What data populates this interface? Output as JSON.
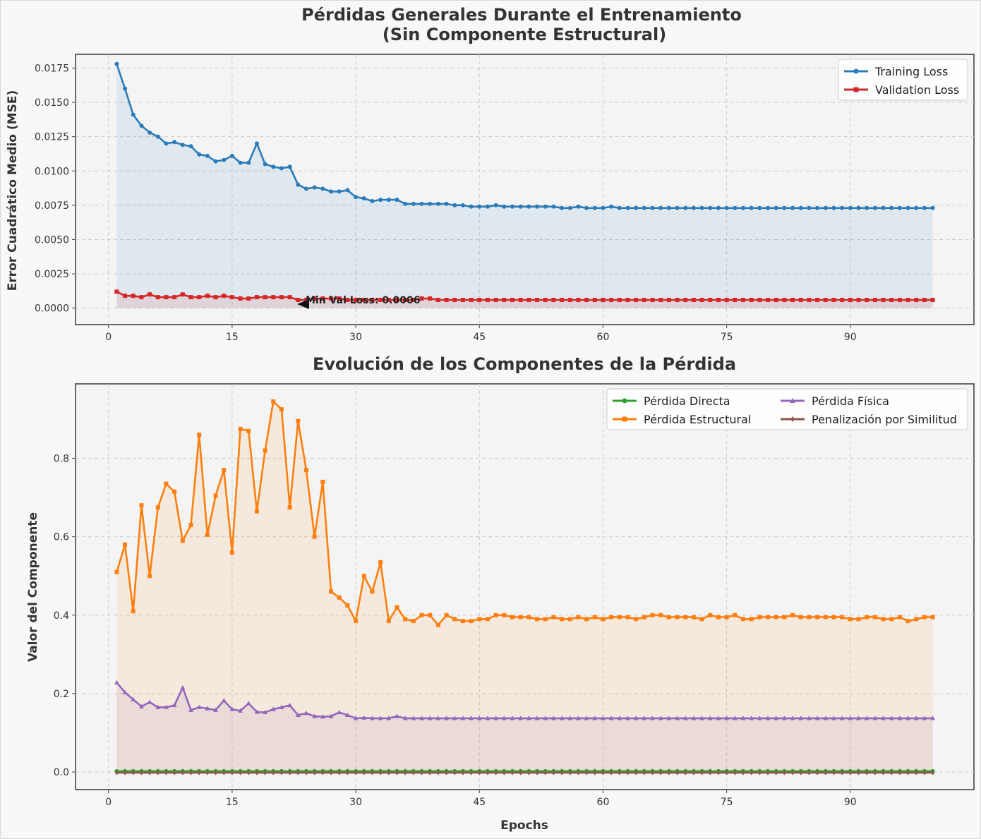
{
  "chart_data": [
    {
      "type": "line",
      "title_line1": "Pérdidas Generales Durante el Entrenamiento",
      "title_line2": "(Sin Componente Estructural)",
      "xlabel": "",
      "ylabel": "Error Cuadrático Medio (MSE)",
      "xlim": [
        -4,
        105
      ],
      "ylim": [
        -0.0012,
        0.0185
      ],
      "xticks": [
        0,
        15,
        30,
        45,
        60,
        75,
        90
      ],
      "yticks": [
        0.0,
        0.0025,
        0.005,
        0.0075,
        0.01,
        0.0125,
        0.015,
        0.0175
      ],
      "ytick_labels": [
        "0.0000",
        "0.0025",
        "0.0050",
        "0.0075",
        "0.0100",
        "0.0125",
        "0.0150",
        "0.0175"
      ],
      "grid": true,
      "legend_position": "top-right",
      "annotation": {
        "text": "Min Val Loss: 0.0006",
        "x": 23,
        "y": 0.0006
      },
      "series": [
        {
          "name": "Training Loss",
          "color": "#2b7bba",
          "marker": "circle",
          "values": [
            0.0178,
            0.016,
            0.0141,
            0.0133,
            0.0128,
            0.0125,
            0.012,
            0.0121,
            0.0119,
            0.0118,
            0.0112,
            0.0111,
            0.0107,
            0.0108,
            0.0111,
            0.0106,
            0.0106,
            0.012,
            0.0105,
            0.0103,
            0.0102,
            0.0103,
            0.009,
            0.0087,
            0.0088,
            0.0087,
            0.0085,
            0.0085,
            0.0086,
            0.0081,
            0.008,
            0.0078,
            0.0079,
            0.0079,
            0.0079,
            0.0076,
            0.0076,
            0.0076,
            0.0076,
            0.0076,
            0.0076,
            0.0075,
            0.0075,
            0.0074,
            0.0074,
            0.0074,
            0.0075,
            0.0074,
            0.0074,
            0.0074,
            0.0074,
            0.0074,
            0.0074,
            0.0074,
            0.0073,
            0.0073,
            0.0074,
            0.0073,
            0.0073,
            0.0073,
            0.0074,
            0.0073,
            0.0073,
            0.0073,
            0.0073,
            0.0073,
            0.0073,
            0.0073,
            0.0073,
            0.0073,
            0.0073,
            0.0073,
            0.0073,
            0.0073,
            0.0073,
            0.0073,
            0.0073,
            0.0073,
            0.0073,
            0.0073,
            0.0073,
            0.0073,
            0.0073,
            0.0073,
            0.0073,
            0.0073,
            0.0073,
            0.0073,
            0.0073,
            0.0073,
            0.0073,
            0.0073,
            0.0073,
            0.0073,
            0.0073,
            0.0073,
            0.0073,
            0.0073,
            0.0073,
            0.0073
          ]
        },
        {
          "name": "Validation Loss",
          "color": "#d62728",
          "marker": "square",
          "values": [
            0.0012,
            0.0009,
            0.0009,
            0.0008,
            0.001,
            0.0008,
            0.0008,
            0.0008,
            0.001,
            0.0008,
            0.0008,
            0.0009,
            0.0008,
            0.0009,
            0.0008,
            0.0007,
            0.0007,
            0.0008,
            0.0008,
            0.0008,
            0.0008,
            0.0008,
            0.0006,
            0.0006,
            0.0007,
            0.0007,
            0.0007,
            0.0007,
            0.0006,
            0.0006,
            0.0006,
            0.0006,
            0.0006,
            0.0006,
            0.0006,
            0.0006,
            0.0006,
            0.0007,
            0.0007,
            0.0006,
            0.0006,
            0.0006,
            0.0006,
            0.0006,
            0.0006,
            0.0006,
            0.0006,
            0.0006,
            0.0006,
            0.0006,
            0.0006,
            0.0006,
            0.0006,
            0.0006,
            0.0006,
            0.0006,
            0.0006,
            0.0006,
            0.0006,
            0.0006,
            0.0006,
            0.0006,
            0.0006,
            0.0006,
            0.0006,
            0.0006,
            0.0006,
            0.0006,
            0.0006,
            0.0006,
            0.0006,
            0.0006,
            0.0006,
            0.0006,
            0.0006,
            0.0006,
            0.0006,
            0.0006,
            0.0006,
            0.0006,
            0.0006,
            0.0006,
            0.0006,
            0.0006,
            0.0006,
            0.0006,
            0.0006,
            0.0006,
            0.0006,
            0.0006,
            0.0006,
            0.0006,
            0.0006,
            0.0006,
            0.0006,
            0.0006,
            0.0006,
            0.0006,
            0.0006,
            0.0006
          ]
        }
      ]
    },
    {
      "type": "line",
      "title": "Evolución de los Componentes de la Pérdida",
      "xlabel": "Epochs",
      "ylabel": "Valor del Componente",
      "xlim": [
        -4,
        105
      ],
      "ylim": [
        -0.045,
        0.99
      ],
      "xticks": [
        0,
        15,
        30,
        45,
        60,
        75,
        90
      ],
      "yticks": [
        0.0,
        0.2,
        0.4,
        0.6,
        0.8
      ],
      "ytick_labels": [
        "0.0",
        "0.2",
        "0.4",
        "0.6",
        "0.8"
      ],
      "grid": true,
      "legend_position": "top-right",
      "legend_columns": 2,
      "series": [
        {
          "name": "Pérdida Directa",
          "color": "#2ca02c",
          "marker": "circle",
          "fill": false,
          "values": [
            0.002,
            0.002,
            0.002,
            0.002,
            0.002,
            0.002,
            0.002,
            0.002,
            0.002,
            0.002,
            0.002,
            0.002,
            0.002,
            0.002,
            0.002,
            0.002,
            0.002,
            0.002,
            0.002,
            0.002,
            0.002,
            0.002,
            0.002,
            0.002,
            0.002,
            0.002,
            0.002,
            0.002,
            0.002,
            0.002,
            0.002,
            0.002,
            0.002,
            0.002,
            0.002,
            0.002,
            0.002,
            0.002,
            0.002,
            0.002,
            0.002,
            0.002,
            0.002,
            0.002,
            0.002,
            0.002,
            0.002,
            0.002,
            0.002,
            0.002,
            0.002,
            0.002,
            0.002,
            0.002,
            0.002,
            0.002,
            0.002,
            0.002,
            0.002,
            0.002,
            0.002,
            0.002,
            0.002,
            0.002,
            0.002,
            0.002,
            0.002,
            0.002,
            0.002,
            0.002,
            0.002,
            0.002,
            0.002,
            0.002,
            0.002,
            0.002,
            0.002,
            0.002,
            0.002,
            0.002,
            0.002,
            0.002,
            0.002,
            0.002,
            0.002,
            0.002,
            0.002,
            0.002,
            0.002,
            0.002,
            0.002,
            0.002,
            0.002,
            0.002,
            0.002,
            0.002,
            0.002,
            0.002,
            0.002,
            0.002
          ]
        },
        {
          "name": "Pérdida Estructural",
          "color": "#ff7f0e",
          "marker": "square",
          "fill": true,
          "values": [
            0.51,
            0.58,
            0.41,
            0.68,
            0.5,
            0.675,
            0.735,
            0.715,
            0.59,
            0.63,
            0.86,
            0.605,
            0.705,
            0.77,
            0.56,
            0.875,
            0.87,
            0.665,
            0.82,
            0.945,
            0.925,
            0.675,
            0.895,
            0.77,
            0.6,
            0.74,
            0.46,
            0.445,
            0.425,
            0.385,
            0.5,
            0.46,
            0.535,
            0.385,
            0.42,
            0.39,
            0.385,
            0.4,
            0.4,
            0.375,
            0.4,
            0.39,
            0.385,
            0.385,
            0.39,
            0.39,
            0.4,
            0.4,
            0.395,
            0.395,
            0.395,
            0.39,
            0.39,
            0.395,
            0.39,
            0.39,
            0.395,
            0.39,
            0.395,
            0.39,
            0.395,
            0.395,
            0.395,
            0.39,
            0.395,
            0.4,
            0.4,
            0.395,
            0.395,
            0.395,
            0.395,
            0.39,
            0.4,
            0.395,
            0.395,
            0.4,
            0.39,
            0.39,
            0.395,
            0.395,
            0.395,
            0.395,
            0.4,
            0.395,
            0.395,
            0.395,
            0.395,
            0.395,
            0.395,
            0.39,
            0.39,
            0.395,
            0.395,
            0.39,
            0.39,
            0.395,
            0.385,
            0.39,
            0.395,
            0.395
          ]
        },
        {
          "name": "Pérdida Física",
          "color": "#9467bd",
          "marker": "triangle",
          "fill": true,
          "values": [
            0.228,
            0.203,
            0.185,
            0.167,
            0.178,
            0.165,
            0.165,
            0.17,
            0.215,
            0.158,
            0.165,
            0.162,
            0.158,
            0.182,
            0.16,
            0.156,
            0.175,
            0.153,
            0.152,
            0.16,
            0.165,
            0.17,
            0.145,
            0.15,
            0.142,
            0.141,
            0.142,
            0.152,
            0.145,
            0.137,
            0.138,
            0.137,
            0.137,
            0.137,
            0.142,
            0.137,
            0.137,
            0.137,
            0.137,
            0.137,
            0.137,
            0.137,
            0.137,
            0.137,
            0.137,
            0.137,
            0.137,
            0.137,
            0.137,
            0.137,
            0.137,
            0.137,
            0.137,
            0.137,
            0.137,
            0.137,
            0.137,
            0.137,
            0.137,
            0.137,
            0.137,
            0.137,
            0.137,
            0.137,
            0.137,
            0.137,
            0.137,
            0.137,
            0.137,
            0.137,
            0.137,
            0.137,
            0.137,
            0.137,
            0.137,
            0.137,
            0.137,
            0.137,
            0.137,
            0.137,
            0.137,
            0.137,
            0.137,
            0.137,
            0.137,
            0.137,
            0.137,
            0.137,
            0.137,
            0.137,
            0.137,
            0.137,
            0.137,
            0.137,
            0.137,
            0.137,
            0.137,
            0.137,
            0.137,
            0.137
          ]
        },
        {
          "name": "Penalización por Similitud",
          "color": "#8c564b",
          "marker": "diamond",
          "fill": false,
          "values": [
            -0.002,
            -0.002,
            -0.002,
            -0.002,
            -0.002,
            -0.002,
            -0.002,
            -0.002,
            -0.002,
            -0.002,
            -0.002,
            -0.002,
            -0.002,
            -0.002,
            -0.002,
            -0.002,
            -0.002,
            -0.002,
            -0.002,
            -0.002,
            -0.002,
            -0.002,
            -0.002,
            -0.002,
            -0.002,
            -0.002,
            -0.002,
            -0.002,
            -0.002,
            -0.002,
            -0.002,
            -0.002,
            -0.002,
            -0.002,
            -0.002,
            -0.002,
            -0.002,
            -0.002,
            -0.002,
            -0.002,
            -0.002,
            -0.002,
            -0.002,
            -0.002,
            -0.002,
            -0.002,
            -0.002,
            -0.002,
            -0.002,
            -0.002,
            -0.002,
            -0.002,
            -0.002,
            -0.002,
            -0.002,
            -0.002,
            -0.002,
            -0.002,
            -0.002,
            -0.002,
            -0.002,
            -0.002,
            -0.002,
            -0.002,
            -0.002,
            -0.002,
            -0.002,
            -0.002,
            -0.002,
            -0.002,
            -0.002,
            -0.002,
            -0.002,
            -0.002,
            -0.002,
            -0.002,
            -0.002,
            -0.002,
            -0.002,
            -0.002,
            -0.002,
            -0.002,
            -0.002,
            -0.002,
            -0.002,
            -0.002,
            -0.002,
            -0.002,
            -0.002,
            -0.002,
            -0.002,
            -0.002,
            -0.002,
            -0.002,
            -0.002,
            -0.002,
            -0.002,
            -0.002,
            -0.002,
            -0.002
          ]
        }
      ]
    }
  ]
}
